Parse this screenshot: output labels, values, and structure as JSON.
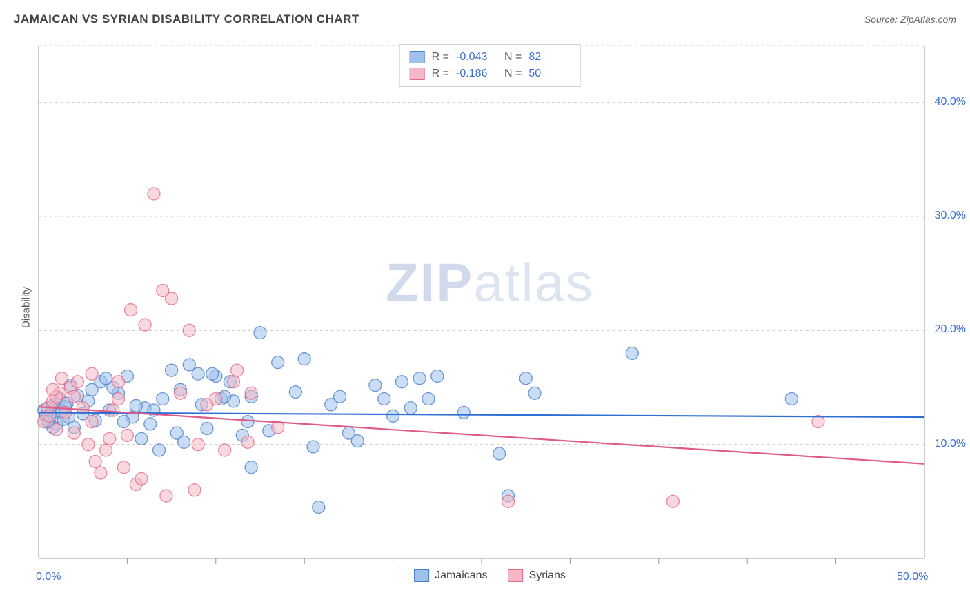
{
  "title": "JAMAICAN VS SYRIAN DISABILITY CORRELATION CHART",
  "source_label": "Source: ZipAtlas.com",
  "ylabel": "Disability",
  "watermark_a": "ZIP",
  "watermark_b": "atlas",
  "chart": {
    "type": "scatter",
    "background_color": "#ffffff",
    "grid_color": "#cccccc",
    "axis_color": "#999999",
    "text_color": "#555555",
    "value_color": "#3b6fd6",
    "xlim": [
      0,
      50
    ],
    "ylim": [
      0,
      45
    ],
    "xtick_labels": [
      {
        "v": 0,
        "label": "0.0%"
      },
      {
        "v": 50,
        "label": "50.0%"
      }
    ],
    "xtick_minor": [
      5,
      10,
      15,
      20,
      25,
      30,
      35,
      40,
      45
    ],
    "ytick_labels": [
      {
        "v": 10,
        "label": "10.0%"
      },
      {
        "v": 20,
        "label": "20.0%"
      },
      {
        "v": 30,
        "label": "30.0%"
      },
      {
        "v": 40,
        "label": "40.0%"
      }
    ],
    "marker_radius": 9,
    "marker_opacity": 0.55,
    "series": [
      {
        "name": "Jamaicans",
        "fill": "#9ec1ec",
        "stroke": "#4a7fc9",
        "R": "-0.043",
        "N": "82",
        "trend": {
          "y_at_x0": 12.8,
          "y_at_xmax": 12.4,
          "color": "#2f6fd1"
        },
        "points": [
          [
            0.3,
            13.0
          ],
          [
            0.4,
            12.5
          ],
          [
            0.5,
            13.2
          ],
          [
            0.6,
            12.0
          ],
          [
            0.7,
            12.8
          ],
          [
            0.8,
            13.4
          ],
          [
            1.0,
            11.8
          ],
          [
            1.2,
            14.0
          ],
          [
            1.4,
            12.2
          ],
          [
            1.6,
            13.6
          ],
          [
            1.8,
            15.2
          ],
          [
            2.0,
            11.5
          ],
          [
            2.2,
            14.3
          ],
          [
            2.5,
            12.7
          ],
          [
            2.8,
            13.8
          ],
          [
            3.0,
            14.8
          ],
          [
            3.2,
            12.1
          ],
          [
            3.5,
            15.5
          ],
          [
            4.0,
            13.0
          ],
          [
            4.5,
            14.5
          ],
          [
            5.0,
            16.0
          ],
          [
            5.3,
            12.4
          ],
          [
            5.8,
            10.5
          ],
          [
            6.0,
            13.2
          ],
          [
            6.3,
            11.8
          ],
          [
            6.8,
            9.5
          ],
          [
            7.5,
            16.5
          ],
          [
            7.8,
            11.0
          ],
          [
            8.0,
            14.8
          ],
          [
            8.2,
            10.2
          ],
          [
            8.5,
            17.0
          ],
          [
            9.0,
            16.2
          ],
          [
            9.2,
            13.5
          ],
          [
            9.5,
            11.4
          ],
          [
            10.0,
            16.0
          ],
          [
            10.3,
            14.0
          ],
          [
            10.8,
            15.5
          ],
          [
            11.0,
            13.8
          ],
          [
            11.5,
            10.8
          ],
          [
            12.0,
            14.2
          ],
          [
            12.0,
            8.0
          ],
          [
            12.5,
            19.8
          ],
          [
            13.0,
            11.2
          ],
          [
            13.5,
            17.2
          ],
          [
            14.5,
            14.6
          ],
          [
            15.0,
            17.5
          ],
          [
            15.5,
            9.8
          ],
          [
            15.8,
            4.5
          ],
          [
            16.5,
            13.5
          ],
          [
            17.0,
            14.2
          ],
          [
            17.5,
            11.0
          ],
          [
            18.0,
            10.3
          ],
          [
            19.0,
            15.2
          ],
          [
            19.5,
            14.0
          ],
          [
            20.0,
            12.5
          ],
          [
            20.5,
            15.5
          ],
          [
            21.0,
            13.2
          ],
          [
            21.5,
            15.8
          ],
          [
            22.0,
            14.0
          ],
          [
            22.5,
            16.0
          ],
          [
            24.0,
            12.8
          ],
          [
            26.0,
            9.2
          ],
          [
            26.5,
            5.5
          ],
          [
            27.5,
            15.8
          ],
          [
            28.0,
            14.5
          ],
          [
            33.5,
            18.0
          ],
          [
            1.0,
            13.0
          ],
          [
            0.8,
            11.5
          ],
          [
            1.3,
            12.9
          ],
          [
            1.5,
            13.3
          ],
          [
            1.7,
            12.4
          ],
          [
            0.5,
            12.0
          ],
          [
            4.2,
            15.0
          ],
          [
            4.8,
            12.0
          ],
          [
            5.5,
            13.4
          ],
          [
            6.5,
            13.0
          ],
          [
            7.0,
            14.0
          ],
          [
            3.8,
            15.8
          ],
          [
            9.8,
            16.2
          ],
          [
            10.5,
            14.2
          ],
          [
            11.8,
            12.0
          ],
          [
            42.5,
            14.0
          ]
        ]
      },
      {
        "name": "Syrians",
        "fill": "#f4b8c6",
        "stroke": "#e26b8a",
        "R": "-0.186",
        "N": "50",
        "trend": {
          "y_at_x0": 13.3,
          "y_at_xmax": 8.3,
          "color": "#e05a86"
        },
        "points": [
          [
            0.3,
            12.0
          ],
          [
            0.5,
            13.2
          ],
          [
            0.6,
            12.5
          ],
          [
            0.8,
            13.8
          ],
          [
            1.0,
            11.3
          ],
          [
            1.2,
            14.5
          ],
          [
            1.5,
            12.8
          ],
          [
            1.8,
            15.0
          ],
          [
            2.0,
            11.0
          ],
          [
            2.2,
            15.5
          ],
          [
            2.5,
            13.2
          ],
          [
            2.8,
            10.0
          ],
          [
            3.0,
            16.2
          ],
          [
            3.2,
            8.5
          ],
          [
            3.5,
            7.5
          ],
          [
            3.8,
            9.5
          ],
          [
            4.0,
            10.5
          ],
          [
            4.5,
            14.0
          ],
          [
            4.8,
            8.0
          ],
          [
            5.0,
            10.8
          ],
          [
            5.2,
            21.8
          ],
          [
            5.5,
            6.5
          ],
          [
            5.8,
            7.0
          ],
          [
            6.0,
            20.5
          ],
          [
            6.5,
            32.0
          ],
          [
            7.0,
            23.5
          ],
          [
            7.5,
            22.8
          ],
          [
            8.0,
            14.5
          ],
          [
            8.5,
            20.0
          ],
          [
            8.8,
            6.0
          ],
          [
            9.0,
            10.0
          ],
          [
            9.5,
            13.5
          ],
          [
            10.0,
            14.0
          ],
          [
            10.5,
            9.5
          ],
          [
            11.0,
            15.5
          ],
          [
            11.2,
            16.5
          ],
          [
            11.8,
            10.2
          ],
          [
            12.0,
            14.5
          ],
          [
            13.5,
            11.5
          ],
          [
            1.0,
            14.2
          ],
          [
            1.3,
            15.8
          ],
          [
            0.8,
            14.8
          ],
          [
            2.0,
            14.2
          ],
          [
            4.2,
            13.0
          ],
          [
            7.2,
            5.5
          ],
          [
            26.5,
            5.0
          ],
          [
            35.8,
            5.0
          ],
          [
            44.0,
            12.0
          ],
          [
            3.0,
            12.0
          ],
          [
            4.5,
            15.5
          ]
        ]
      }
    ]
  }
}
